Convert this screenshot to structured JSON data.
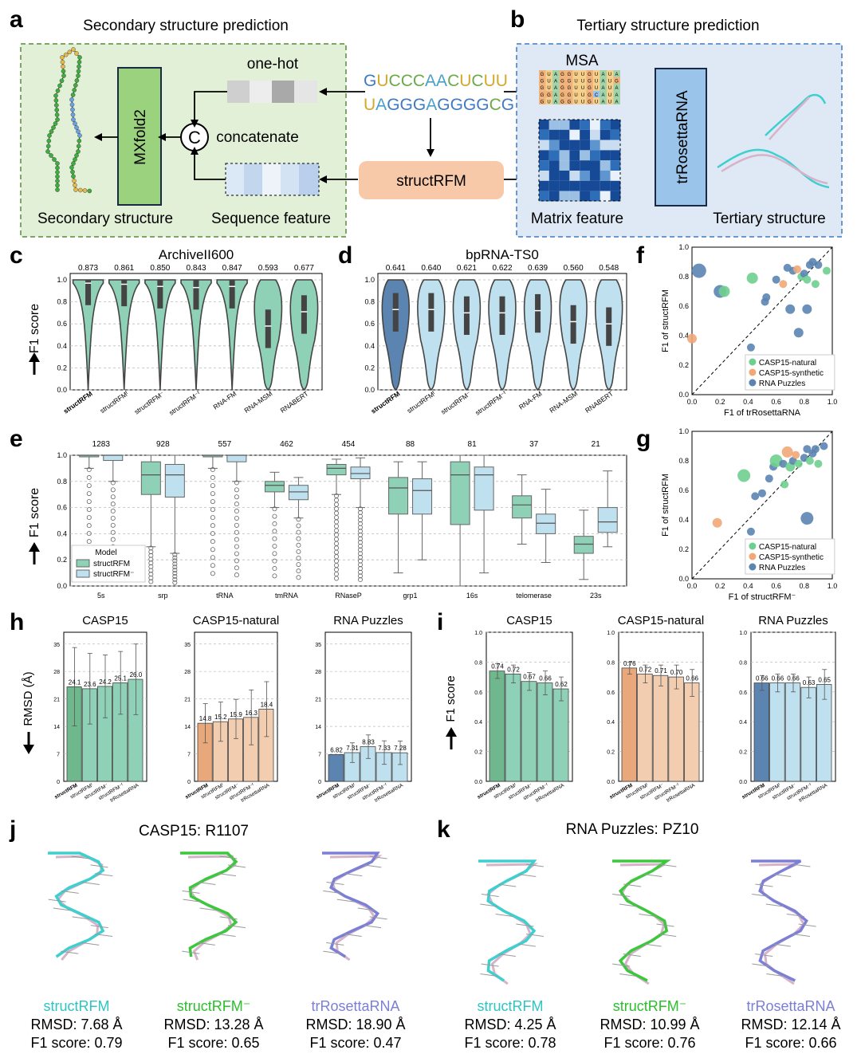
{
  "colors": {
    "green": "#8fd1b6",
    "green_dark": "#6fb88d",
    "blue_dark": "#5b84b1",
    "blue_light": "#bfe0ee",
    "orange_dark": "#e8a87c",
    "orange_light": "#f2cdb0",
    "cyan": "#3ecfcf",
    "lime": "#3cc83c",
    "violet": "#7b7fd6",
    "salmon": "#f3c2a2",
    "mxfold_green": "#9bd27e",
    "trros_blue": "#9ac4ea"
  },
  "panels": {
    "a": "a",
    "b": "b",
    "c": "c",
    "d": "d",
    "e": "e",
    "f": "f",
    "g": "g",
    "h": "h",
    "i": "i",
    "j": "j",
    "k": "k"
  },
  "panel_a": {
    "title": "Secondary structure prediction",
    "onehot": "one-hot",
    "concat_symbol": "C",
    "concatenate": "concatenate",
    "mxfold": "MXfold2",
    "secondary": "Secondary structure",
    "seqfeat": "Sequence feature"
  },
  "center": {
    "seq_line1": "GUCCCAACUCUU",
    "seq_line2": "UAGGGAGGGGCG",
    "structrfm": "structRFM"
  },
  "panel_b": {
    "title": "Tertiary structure prediction",
    "msa": "MSA",
    "trros": "trRosettaRNA",
    "matrix": "Matrix feature",
    "tertiary": "Tertiary structure"
  },
  "chart_data": [
    {
      "id": "c",
      "type": "violin",
      "title": "ArchiveII600",
      "ylabel": "F1 score",
      "ylim": [
        0,
        1.0
      ],
      "yticks": [
        "0.0",
        "0.2",
        "0.4",
        "0.6",
        "0.8",
        "1.0"
      ],
      "categories": [
        "structRFM",
        "structRFM_F",
        "structRFM⁻",
        "structRFM⁻_F",
        "RNA-FM",
        "RNA-MSM",
        "RNABERT"
      ],
      "means": [
        0.873,
        0.861,
        0.85,
        0.843,
        0.847,
        0.593,
        0.677
      ],
      "medians": [
        0.97,
        0.96,
        0.94,
        0.93,
        0.94,
        0.58,
        0.71
      ]
    },
    {
      "id": "d",
      "type": "violin",
      "title": "bpRNA-TS0",
      "ylim": [
        0,
        1.0
      ],
      "yticks": [
        "0.0",
        "0.2",
        "0.4",
        "0.6",
        "0.8",
        "1.0"
      ],
      "categories": [
        "structRFM",
        "structRFM_F",
        "structRFM⁻",
        "structRFM⁻_F",
        "RNA-FM",
        "RNA-MSM",
        "RNABERT"
      ],
      "means": [
        0.641,
        0.64,
        0.621,
        0.622,
        0.639,
        0.56,
        0.548
      ],
      "medians": [
        0.73,
        0.73,
        0.7,
        0.7,
        0.72,
        0.62,
        0.6
      ]
    },
    {
      "id": "e",
      "type": "box",
      "ylabel": "F1 score",
      "ylim": [
        0,
        1.0
      ],
      "yticks": [
        "0.0",
        "0.2",
        "0.4",
        "0.6",
        "0.8",
        "1.0"
      ],
      "categories": [
        "5s",
        "srp",
        "tRNA",
        "tmRNA",
        "RNaseP",
        "grp1",
        "16s",
        "telomerase",
        "23s"
      ],
      "counts": [
        "1283",
        "928",
        "557",
        "462",
        "454",
        "88",
        "81",
        "37",
        "21"
      ],
      "legend_title": "Model",
      "series": [
        {
          "name": "structRFM",
          "q1": [
            1.0,
            0.7,
            1.0,
            0.72,
            0.85,
            0.55,
            0.47,
            0.52,
            0.25
          ],
          "median": [
            1.0,
            0.85,
            1.0,
            0.77,
            0.9,
            0.75,
            0.85,
            0.62,
            0.32
          ],
          "q3": [
            1.0,
            0.95,
            1.0,
            0.8,
            0.93,
            0.83,
            0.95,
            0.69,
            0.38
          ],
          "wlo": [
            0.9,
            0.3,
            0.9,
            0.6,
            0.7,
            0.1,
            0.0,
            0.32,
            0.05
          ],
          "whi": [
            1.0,
            1.0,
            1.0,
            0.87,
            0.97,
            0.95,
            1.0,
            0.85,
            0.58
          ]
        },
        {
          "name": "structRFM⁻",
          "q1": [
            0.96,
            0.68,
            0.95,
            0.66,
            0.82,
            0.55,
            0.58,
            0.4,
            0.41
          ],
          "median": [
            1.0,
            0.85,
            1.0,
            0.72,
            0.86,
            0.73,
            0.85,
            0.48,
            0.49
          ],
          "q3": [
            1.0,
            0.93,
            1.0,
            0.77,
            0.91,
            0.82,
            0.91,
            0.55,
            0.6
          ],
          "wlo": [
            0.8,
            0.25,
            0.8,
            0.52,
            0.6,
            0.2,
            0.1,
            0.18,
            0.3
          ],
          "whi": [
            1.0,
            1.0,
            1.0,
            0.83,
            0.98,
            0.95,
            1.0,
            0.74,
            0.88
          ]
        }
      ]
    },
    {
      "id": "f",
      "type": "scatter",
      "xlabel": "F1 of trRosettaRNA",
      "ylabel": "F1 of structRFM",
      "xlim": [
        0,
        1.0
      ],
      "ylim": [
        0,
        1.0
      ],
      "ticks": [
        "0.0",
        "0.2",
        "0.4",
        "0.6",
        "0.8",
        "1.0"
      ],
      "legend": [
        "CASP15-natural",
        "CASP15-synthetic",
        "RNA Puzzles"
      ],
      "points": [
        {
          "x": 0.05,
          "y": 0.84,
          "s": "RNA Puzzles",
          "r": 9
        },
        {
          "x": 0.0,
          "y": 0.38,
          "s": "CASP15-synthetic",
          "r": 6
        },
        {
          "x": 0.2,
          "y": 0.7,
          "s": "RNA Puzzles",
          "r": 8
        },
        {
          "x": 0.23,
          "y": 0.7,
          "s": "CASP15-natural",
          "r": 7
        },
        {
          "x": 0.43,
          "y": 0.79,
          "s": "CASP15-natural",
          "r": 7
        },
        {
          "x": 0.42,
          "y": 0.32,
          "s": "RNA Puzzles",
          "r": 5
        },
        {
          "x": 0.53,
          "y": 0.66,
          "s": "RNA Puzzles",
          "r": 5
        },
        {
          "x": 0.52,
          "y": 0.63,
          "s": "RNA Puzzles",
          "r": 5
        },
        {
          "x": 0.6,
          "y": 0.78,
          "s": "RNA Puzzles",
          "r": 5
        },
        {
          "x": 0.65,
          "y": 0.75,
          "s": "CASP15-synthetic",
          "r": 5
        },
        {
          "x": 0.68,
          "y": 0.86,
          "s": "RNA Puzzles",
          "r": 5
        },
        {
          "x": 0.72,
          "y": 0.84,
          "s": "RNA Puzzles",
          "r": 5
        },
        {
          "x": 0.75,
          "y": 0.85,
          "s": "CASP15-synthetic",
          "r": 5
        },
        {
          "x": 0.78,
          "y": 0.8,
          "s": "CASP15-natural",
          "r": 5
        },
        {
          "x": 0.8,
          "y": 0.82,
          "s": "RNA Puzzles",
          "r": 5
        },
        {
          "x": 0.82,
          "y": 0.78,
          "s": "CASP15-natural",
          "r": 5
        },
        {
          "x": 0.84,
          "y": 0.88,
          "s": "RNA Puzzles",
          "r": 5
        },
        {
          "x": 0.86,
          "y": 0.9,
          "s": "RNA Puzzles",
          "r": 5
        },
        {
          "x": 0.9,
          "y": 0.88,
          "s": "RNA Puzzles",
          "r": 5
        },
        {
          "x": 0.96,
          "y": 0.84,
          "s": "CASP15-natural",
          "r": 5
        },
        {
          "x": 0.7,
          "y": 0.58,
          "s": "RNA Puzzles",
          "r": 6
        },
        {
          "x": 0.76,
          "y": 0.42,
          "s": "RNA Puzzles",
          "r": 6
        },
        {
          "x": 0.82,
          "y": 0.58,
          "s": "RNA Puzzles",
          "r": 6
        },
        {
          "x": 0.88,
          "y": 0.75,
          "s": "CASP15-natural",
          "r": 5
        }
      ]
    },
    {
      "id": "g",
      "type": "scatter",
      "xlabel": "F1 of structRFM⁻",
      "ylabel": "F1 of structRFM",
      "xlim": [
        0,
        1.0
      ],
      "ylim": [
        0,
        1.0
      ],
      "ticks": [
        "0.0",
        "0.2",
        "0.4",
        "0.6",
        "0.8",
        "1.0"
      ],
      "legend": [
        "CASP15-natural",
        "CASP15-synthetic",
        "RNA Puzzles"
      ],
      "points": [
        {
          "x": 0.18,
          "y": 0.38,
          "s": "CASP15-synthetic",
          "r": 6
        },
        {
          "x": 0.37,
          "y": 0.7,
          "s": "CASP15-natural",
          "r": 8
        },
        {
          "x": 0.42,
          "y": 0.32,
          "s": "RNA Puzzles",
          "r": 5
        },
        {
          "x": 0.45,
          "y": 0.56,
          "s": "RNA Puzzles",
          "r": 5
        },
        {
          "x": 0.5,
          "y": 0.58,
          "s": "RNA Puzzles",
          "r": 5
        },
        {
          "x": 0.55,
          "y": 0.68,
          "s": "RNA Puzzles",
          "r": 5
        },
        {
          "x": 0.58,
          "y": 0.76,
          "s": "RNA Puzzles",
          "r": 5
        },
        {
          "x": 0.6,
          "y": 0.8,
          "s": "CASP15-natural",
          "r": 8
        },
        {
          "x": 0.65,
          "y": 0.78,
          "s": "RNA Puzzles",
          "r": 5
        },
        {
          "x": 0.68,
          "y": 0.86,
          "s": "CASP15-synthetic",
          "r": 7
        },
        {
          "x": 0.7,
          "y": 0.76,
          "s": "CASP15-natural",
          "r": 6
        },
        {
          "x": 0.72,
          "y": 0.8,
          "s": "RNA Puzzles",
          "r": 5
        },
        {
          "x": 0.74,
          "y": 0.84,
          "s": "CASP15-synthetic",
          "r": 5
        },
        {
          "x": 0.76,
          "y": 0.78,
          "s": "CASP15-natural",
          "r": 5
        },
        {
          "x": 0.8,
          "y": 0.82,
          "s": "RNA Puzzles",
          "r": 5
        },
        {
          "x": 0.82,
          "y": 0.88,
          "s": "RNA Puzzles",
          "r": 5
        },
        {
          "x": 0.84,
          "y": 0.8,
          "s": "CASP15-natural",
          "r": 5
        },
        {
          "x": 0.86,
          "y": 0.85,
          "s": "RNA Puzzles",
          "r": 5
        },
        {
          "x": 0.88,
          "y": 0.88,
          "s": "RNA Puzzles",
          "r": 5
        },
        {
          "x": 0.9,
          "y": 0.78,
          "s": "CASP15-natural",
          "r": 5
        },
        {
          "x": 0.94,
          "y": 0.9,
          "s": "RNA Puzzles",
          "r": 5
        },
        {
          "x": 0.82,
          "y": 0.41,
          "s": "RNA Puzzles",
          "r": 8
        },
        {
          "x": 0.66,
          "y": 0.64,
          "s": "CASP15-natural",
          "r": 5
        }
      ]
    },
    {
      "id": "h",
      "type": "bar",
      "ylabel": "RMSD (Å)",
      "groups": [
        {
          "title": "CASP15",
          "values": [
            24.1,
            23.6,
            24.2,
            25.1,
            26.0
          ],
          "labels": [
            "24.1",
            "23.6",
            "24.2",
            "25.1",
            "26.0"
          ],
          "err": [
            10,
            9,
            8,
            8,
            9
          ],
          "ylim": [
            0,
            38
          ],
          "yticks": [
            "0",
            "7",
            "14",
            "21",
            "28",
            "35"
          ],
          "palette": "green"
        },
        {
          "title": "CASP15-natural",
          "values": [
            14.8,
            15.2,
            15.9,
            16.3,
            18.4
          ],
          "labels": [
            "14.8",
            "15.2",
            "15.9",
            "16.3",
            "18.4"
          ],
          "err": [
            5,
            5,
            5,
            7,
            7
          ],
          "ylim": [
            0,
            38
          ],
          "yticks": [
            "0",
            "7",
            "14",
            "21",
            "28",
            "35"
          ],
          "palette": "orange"
        },
        {
          "title": "RNA Puzzles",
          "values": [
            6.82,
            7.31,
            8.83,
            7.33,
            7.28
          ],
          "labels": [
            "6.82",
            "7.31",
            "8.83",
            "7.33",
            "7.28"
          ],
          "err": [
            0,
            2.5,
            3,
            3,
            3
          ],
          "ylim": [
            0,
            38
          ],
          "yticks": [
            "0",
            "7",
            "14",
            "21",
            "28",
            "35"
          ],
          "palette": "blue"
        }
      ],
      "categories": [
        "structRFM",
        "structRFM_F",
        "structRFM⁻",
        "structRFM⁻_F",
        "trRosettaRNA"
      ]
    },
    {
      "id": "i",
      "type": "bar",
      "ylabel": "F1 score",
      "groups": [
        {
          "title": "CASP15",
          "values": [
            0.74,
            0.72,
            0.67,
            0.66,
            0.62
          ],
          "labels": [
            "0.74",
            "0.72",
            "0.67",
            "0.66",
            "0.62"
          ],
          "err": [
            0.05,
            0.06,
            0.06,
            0.08,
            0.08
          ],
          "ylim": [
            0,
            1.0
          ],
          "yticks": [
            "0.0",
            "0.2",
            "0.4",
            "0.6",
            "0.8",
            "1.0"
          ],
          "palette": "green"
        },
        {
          "title": "CASP15-natural",
          "values": [
            0.76,
            0.72,
            0.71,
            0.7,
            0.66
          ],
          "labels": [
            "0.76",
            "0.72",
            "0.71",
            "0.70",
            "0.66"
          ],
          "err": [
            0.04,
            0.06,
            0.07,
            0.08,
            0.09
          ],
          "ylim": [
            0,
            1.0
          ],
          "yticks": [
            "0.0",
            "0.2",
            "0.4",
            "0.6",
            "0.8",
            "1.0"
          ],
          "palette": "orange"
        },
        {
          "title": "RNA Puzzles",
          "values": [
            0.66,
            0.66,
            0.66,
            0.63,
            0.65
          ],
          "labels": [
            "0.66",
            "0.66",
            "0.66",
            "0.63",
            "0.65"
          ],
          "err": [
            0.05,
            0.06,
            0.06,
            0.07,
            0.1
          ],
          "ylim": [
            0,
            1.0
          ],
          "yticks": [
            "0.0",
            "0.2",
            "0.4",
            "0.6",
            "0.8",
            "1.0"
          ],
          "palette": "blue"
        }
      ],
      "categories": [
        "structRFM",
        "structRFM_F",
        "structRFM⁻",
        "structRFM⁻_F",
        "trRosettaRNA"
      ]
    }
  ],
  "panel_j": {
    "title": "CASP15: R1107",
    "models": [
      {
        "name": "structRFM",
        "rmsd": "RMSD: 7.68 Å",
        "f1": "F1 score: 0.79"
      },
      {
        "name": "structRFM⁻",
        "rmsd": "RMSD: 13.28 Å",
        "f1": "F1 score: 0.65"
      },
      {
        "name": "trRosettaRNA",
        "rmsd": "RMSD: 18.90 Å",
        "f1": "F1 score: 0.47"
      }
    ]
  },
  "panel_k": {
    "title": "RNA Puzzles: PZ10",
    "models": [
      {
        "name": "structRFM",
        "rmsd": "RMSD: 4.25 Å",
        "f1": "F1 score: 0.78"
      },
      {
        "name": "structRFM⁻",
        "rmsd": "RMSD: 10.99 Å",
        "f1": "F1 score: 0.76"
      },
      {
        "name": "trRosettaRNA",
        "rmsd": "RMSD: 12.14 Å",
        "f1": "F1 score: 0.66"
      }
    ]
  }
}
